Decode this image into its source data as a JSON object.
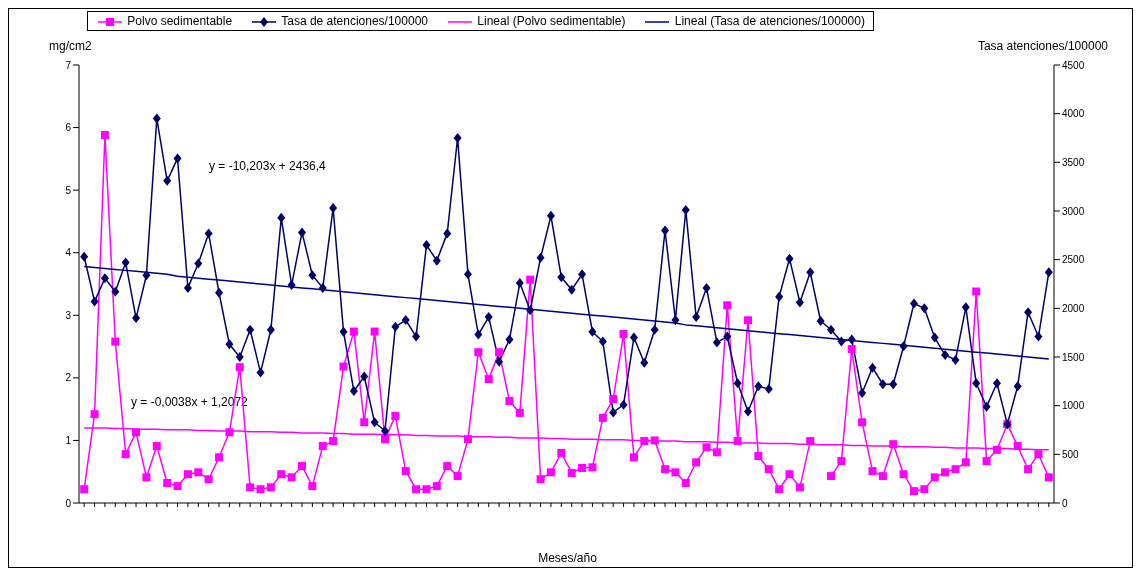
{
  "chart_data": {
    "type": "line",
    "xlabel": "Meses/año",
    "ylabel": "mg/cm2",
    "y2label": "Tasa atenciones/100000",
    "categories": [
      null,
      null,
      null,
      null,
      null,
      null,
      null,
      null,
      null,
      null,
      null,
      null,
      null,
      null,
      null,
      null,
      null,
      null,
      null,
      null,
      null,
      null,
      null,
      null,
      null,
      null,
      null,
      null,
      null,
      null,
      null,
      null,
      null,
      null,
      null,
      null,
      null,
      null,
      null,
      null,
      null,
      null,
      null,
      null,
      null,
      null,
      null,
      null,
      null,
      null,
      null,
      null,
      null,
      null,
      null,
      null,
      null,
      null,
      null,
      null,
      null,
      null,
      null,
      null,
      null,
      null,
      null,
      null,
      null,
      null,
      null,
      null,
      null,
      null,
      null,
      null,
      null,
      null,
      null,
      null,
      null,
      null,
      null,
      null,
      null,
      null,
      null,
      null,
      null,
      null,
      null,
      null,
      null,
      null
    ],
    "series": [
      {
        "name": "Polvo sedimentable",
        "color": "#ff00ff",
        "marker": "square",
        "values": [
          0.22,
          1.42,
          5.88,
          2.58,
          0.78,
          1.13,
          0.41,
          0.91,
          0.32,
          0.27,
          0.46,
          0.49,
          0.38,
          0.73,
          1.13,
          2.17,
          0.25,
          0.22,
          0.25,
          0.46,
          0.41,
          0.59,
          0.27,
          0.91,
          0.99,
          2.18,
          2.74,
          1.29,
          2.74,
          1.02,
          1.39,
          0.51,
          0.22,
          0.22,
          0.27,
          0.59,
          0.43,
          1.02,
          2.41,
          1.98,
          2.41,
          1.63,
          1.44,
          3.57,
          0.38,
          0.49,
          0.8,
          0.48,
          0.56,
          0.57,
          1.36,
          1.66,
          2.7,
          0.73,
          0.99,
          1.0,
          0.54,
          0.49,
          0.32,
          0.65,
          0.89,
          0.81,
          3.16,
          0.99,
          2.92,
          0.75,
          0.54,
          0.22,
          0.46,
          0.25,
          0.99,
          null,
          0.43,
          0.67,
          2.46,
          1.29,
          0.51,
          0.43,
          0.94,
          0.46,
          0.19,
          0.22,
          0.41,
          0.49,
          0.54,
          0.65,
          3.38,
          0.67,
          0.85,
          1.26,
          0.91,
          0.54,
          0.78,
          0.41
        ]
      },
      {
        "name": "Tasa de atenciones/100000",
        "color": "#000066",
        "marker": "diamond",
        "axis": "y2",
        "values": [
          2530,
          2070,
          2310,
          2170,
          2470,
          1900,
          2340,
          3950,
          3310,
          3540,
          2210,
          2460,
          2770,
          2160,
          1630,
          1500,
          1780,
          1340,
          1780,
          2930,
          2240,
          2780,
          2340,
          2210,
          3030,
          1760,
          1150,
          1300,
          830,
          740,
          1810,
          1880,
          1710,
          2650,
          2490,
          2770,
          3750,
          2350,
          1730,
          1910,
          1450,
          1680,
          2260,
          1980,
          2520,
          2950,
          2320,
          2190,
          2350,
          1760,
          1660,
          930,
          1010,
          1700,
          1440,
          1780,
          2800,
          1880,
          3010,
          1910,
          2210,
          1650,
          1710,
          1230,
          940,
          1200,
          1170,
          2120,
          2510,
          2060,
          2370,
          1870,
          1780,
          1660,
          1680,
          1130,
          1390,
          1220,
          1220,
          1610,
          2050,
          2000,
          1700,
          1520,
          1470,
          2010,
          1230,
          990,
          1230,
          810,
          1200,
          1960,
          1710,
          2370
        ]
      },
      {
        "name": "Lineal (Polvo sedimentable)",
        "color": "#ff00ff",
        "type": "line",
        "marker": "none",
        "values": [
          1.2,
          1.2,
          1.2,
          1.19,
          1.19,
          1.18,
          1.18,
          1.18,
          1.17,
          1.17,
          1.17,
          1.16,
          1.16,
          1.15,
          1.15,
          1.15,
          1.14,
          1.14,
          1.14,
          1.13,
          1.13,
          1.12,
          1.12,
          1.12,
          1.11,
          1.11,
          1.1,
          1.1,
          1.1,
          1.09,
          1.09,
          1.09,
          1.08,
          1.08,
          1.07,
          1.07,
          1.07,
          1.06,
          1.06,
          1.06,
          1.05,
          1.05,
          1.04,
          1.04,
          1.04,
          1.03,
          1.03,
          1.02,
          1.02,
          1.02,
          1.01,
          1.01,
          1.01,
          1.0,
          1.0,
          0.99,
          0.99,
          0.99,
          0.98,
          0.98,
          0.98,
          0.97,
          0.97,
          0.96,
          0.96,
          0.96,
          0.95,
          0.95,
          0.95,
          0.94,
          0.94,
          0.93,
          0.93,
          0.93,
          0.92,
          0.92,
          0.91,
          0.91,
          0.91,
          0.9,
          0.9,
          0.9,
          0.89,
          0.89,
          0.88,
          0.88,
          0.88,
          0.87,
          0.87,
          0.87,
          0.86,
          0.86,
          0.85,
          0.85
        ]
      },
      {
        "name": "Lineal (Tasa de atenciones/100000)",
        "color": "#000080",
        "type": "line",
        "marker": "none",
        "axis": "y2",
        "values": [
          2430,
          2420,
          2410,
          2400,
          2390,
          2380,
          2370,
          2360,
          2350,
          2330,
          2320,
          2310,
          2300,
          2290,
          2280,
          2270,
          2260,
          2250,
          2240,
          2230,
          2220,
          2210,
          2200,
          2190,
          2180,
          2170,
          2160,
          2150,
          2140,
          2130,
          2120,
          2110,
          2100,
          2090,
          2080,
          2070,
          2060,
          2050,
          2040,
          2030,
          2020,
          2010,
          2000,
          1990,
          1980,
          1970,
          1960,
          1950,
          1940,
          1930,
          1920,
          1910,
          1900,
          1890,
          1880,
          1870,
          1860,
          1850,
          1830,
          1820,
          1810,
          1800,
          1790,
          1780,
          1770,
          1760,
          1750,
          1740,
          1730,
          1720,
          1710,
          1700,
          1690,
          1680,
          1670,
          1660,
          1650,
          1640,
          1630,
          1620,
          1610,
          1600,
          1590,
          1580,
          1570,
          1560,
          1550,
          1540,
          1530,
          1520,
          1510,
          1500,
          1490,
          1480
        ]
      }
    ],
    "ylim": [
      0,
      7
    ],
    "yticks": [
      0,
      1,
      2,
      3,
      4,
      5,
      6,
      7
    ],
    "y2lim": [
      0,
      4500
    ],
    "y2ticks": [
      0,
      500,
      1000,
      1500,
      2000,
      2500,
      3000,
      3500,
      4000,
      4500
    ],
    "annotations": [
      "y = -10,203x + 2436,4",
      "y = -0,0038x + 1,2072"
    ],
    "legend": "top",
    "grid": false,
    "line_style": "solid"
  }
}
